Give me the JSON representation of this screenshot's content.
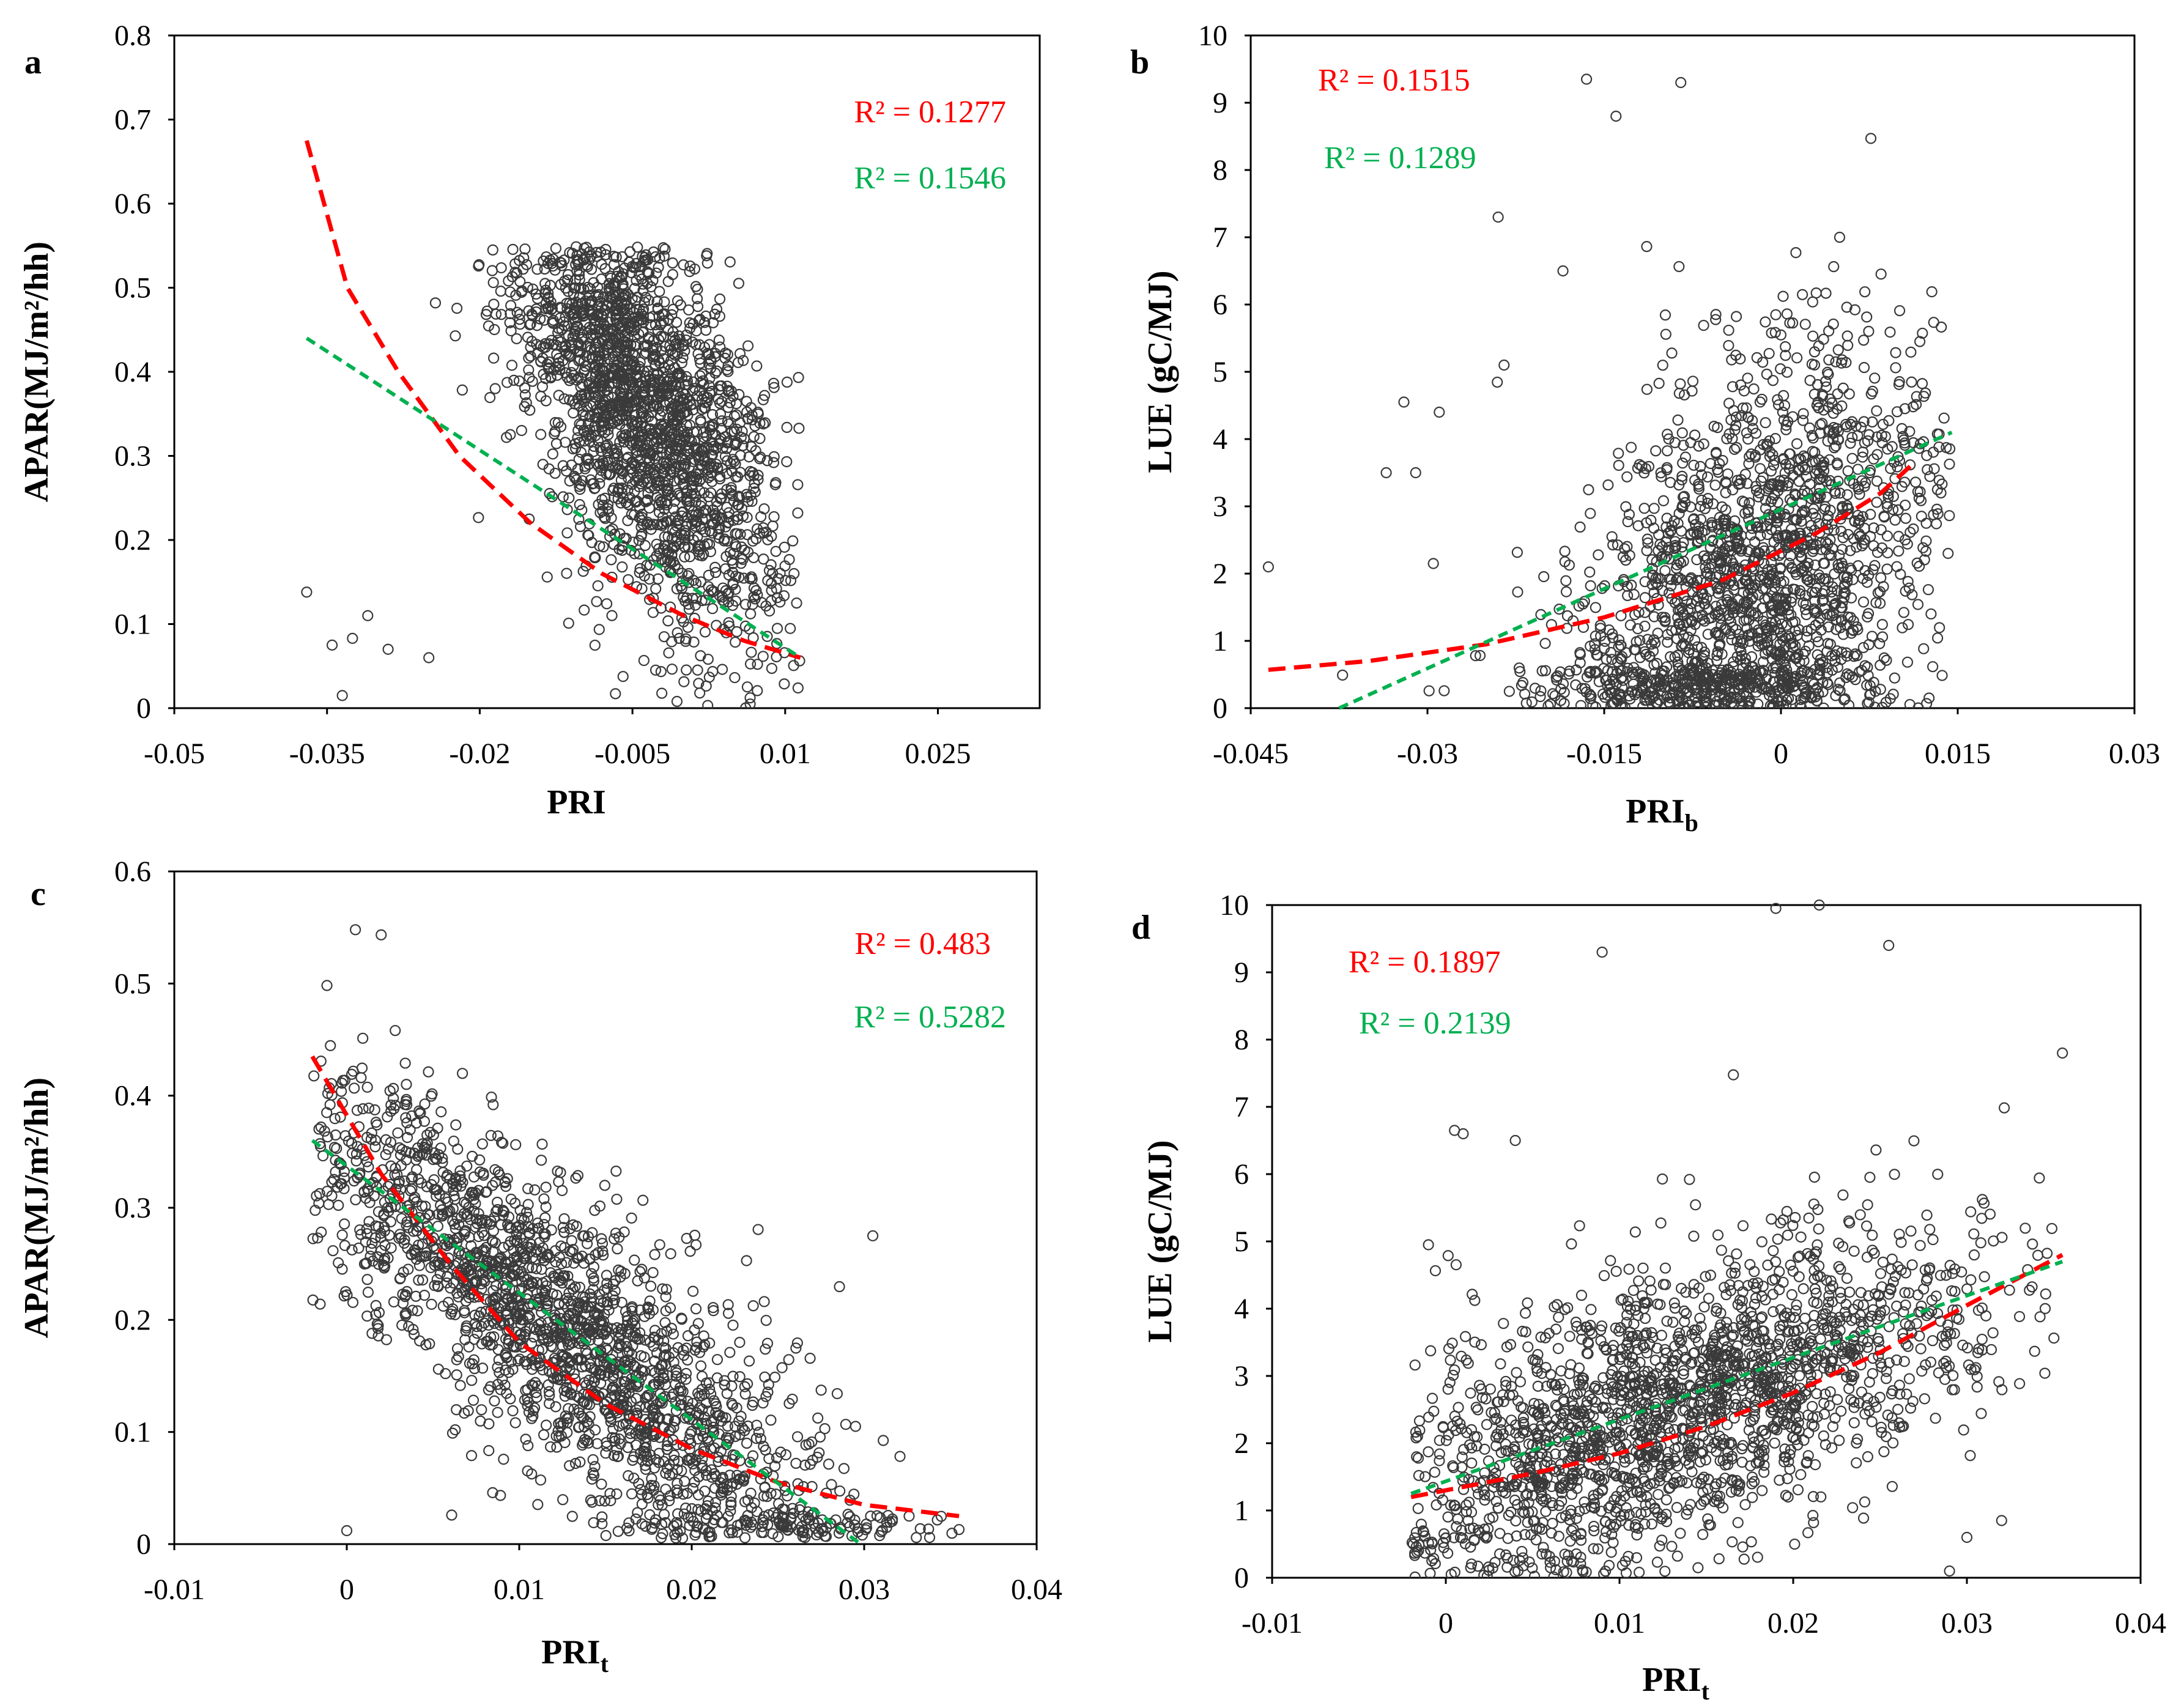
{
  "chart_data": [
    {
      "panel": "a",
      "type": "scatter",
      "xlabel": "PRI",
      "ylabel": "APAR(MJ/m²/hh)",
      "xlim": [
        -0.05,
        0.035
      ],
      "ylim": [
        0,
        0.8
      ],
      "xticks": [
        -0.05,
        -0.035,
        -0.02,
        -0.005,
        0.01,
        0.025
      ],
      "xtick_labels": [
        "-0.05",
        "-0.035",
        "-0.02",
        "-0.005",
        "0.01",
        "0.025"
      ],
      "yticks": [
        0,
        0.1,
        0.2,
        0.3,
        0.4,
        0.5,
        0.6,
        0.7,
        0.8
      ],
      "ytick_labels": [
        "0",
        "0.1",
        "0.2",
        "0.3",
        "0.4",
        "0.5",
        "0.6",
        "0.7",
        "0.8"
      ],
      "point_cloud": {
        "x_center": -0.004,
        "x_spread": 0.0065,
        "y_model": "0.36 - 12*(x+0.004)",
        "y_spread": 0.13,
        "y_min": 0,
        "y_max": 0.55,
        "x_min": -0.037,
        "x_max": 0.0115
      },
      "outliers": [
        [
          -0.037,
          0.138
        ],
        [
          -0.0345,
          0.075
        ],
        [
          -0.0325,
          0.083
        ],
        [
          -0.031,
          0.11
        ],
        [
          -0.0335,
          0.015
        ],
        [
          -0.025,
          0.06
        ],
        [
          -0.029,
          0.07
        ]
      ],
      "fits": [
        {
          "label": "R² = 0.1277",
          "color": "#ff0000",
          "kind": "exponential",
          "points": [
            [
              -0.037,
              0.675
            ],
            [
              -0.033,
              0.5
            ],
            [
              -0.028,
              0.4
            ],
            [
              -0.022,
              0.3
            ],
            [
              -0.015,
              0.22
            ],
            [
              -0.008,
              0.16
            ],
            [
              0.0,
              0.11
            ],
            [
              0.006,
              0.08
            ],
            [
              0.0115,
              0.06
            ]
          ]
        },
        {
          "label": "R² = 0.1546",
          "color": "#00b050",
          "kind": "linear",
          "points": [
            [
              -0.037,
              0.44
            ],
            [
              0.0115,
              0.06
            ]
          ]
        }
      ]
    },
    {
      "panel": "b",
      "type": "scatter",
      "xlabel": "PRI",
      "xlabel_sub": "b",
      "ylabel": "LUE (gC/MJ)",
      "xlim": [
        -0.045,
        0.03
      ],
      "ylim": [
        0,
        10
      ],
      "xticks": [
        -0.045,
        -0.03,
        -0.015,
        0,
        0.015,
        0.03
      ],
      "xtick_labels": [
        "-0.045",
        "-0.03",
        "-0.015",
        "0",
        "0.015",
        "0.03"
      ],
      "yticks": [
        0,
        1,
        2,
        3,
        4,
        5,
        6,
        7,
        8,
        9,
        10
      ],
      "ytick_labels": [
        "0",
        "1",
        "2",
        "3",
        "4",
        "5",
        "6",
        "7",
        "8",
        "9",
        "10"
      ],
      "point_cloud": {
        "x_center": -0.002,
        "x_spread": 0.008,
        "y_model": "1.8 + 90*(x+0.002)",
        "y_spread": 1.9,
        "y_min": 0,
        "y_max": 10,
        "x_min": -0.04,
        "x_max": 0.0145
      },
      "outliers": [
        [
          -0.0435,
          2.1
        ],
        [
          -0.0335,
          3.5
        ],
        [
          -0.031,
          3.5
        ],
        [
          -0.032,
          4.55
        ],
        [
          -0.029,
          4.4
        ],
        [
          -0.0295,
          2.15
        ],
        [
          -0.024,
          7.3
        ],
        [
          -0.0235,
          5.1
        ],
        [
          -0.0185,
          6.5
        ],
        [
          -0.0165,
          9.35
        ],
        [
          -0.014,
          8.8
        ],
        [
          -0.0085,
          9.3
        ]
      ],
      "fits": [
        {
          "label": "R² = 0.1515",
          "color": "#ff0000",
          "kind": "exponential",
          "points": [
            [
              -0.0435,
              0.57
            ],
            [
              -0.035,
              0.7
            ],
            [
              -0.025,
              0.95
            ],
            [
              -0.015,
              1.35
            ],
            [
              -0.005,
              1.9
            ],
            [
              0.003,
              2.6
            ],
            [
              0.0085,
              3.2
            ],
            [
              0.011,
              3.6
            ]
          ]
        },
        {
          "label": "R² = 0.1289",
          "color": "#00b050",
          "kind": "linear",
          "points": [
            [
              -0.0375,
              0.0
            ],
            [
              0.0145,
              4.1
            ]
          ]
        }
      ]
    },
    {
      "panel": "c",
      "type": "scatter",
      "xlabel": "PRI",
      "xlabel_sub": "t",
      "ylabel": "APAR(MJ/m²/hh)",
      "xlim": [
        -0.01,
        0.04
      ],
      "ylim": [
        0,
        0.6
      ],
      "xticks": [
        -0.01,
        0,
        0.01,
        0.02,
        0.03,
        0.04
      ],
      "xtick_labels": [
        "-0.01",
        "0",
        "0.01",
        "0.02",
        "0.03",
        "0.04"
      ],
      "yticks": [
        0,
        0.1,
        0.2,
        0.3,
        0.4,
        0.5,
        0.6
      ],
      "ytick_labels": [
        "0",
        "0.1",
        "0.2",
        "0.3",
        "0.4",
        "0.5",
        "0.6"
      ],
      "point_cloud": {
        "x_center": 0.012,
        "x_spread": 0.0085,
        "y_model": "0.34 - 12*(x-0.0)",
        "y_spread": 0.075,
        "y_min": 0.005,
        "y_max": 0.55,
        "x_min": -0.002,
        "x_max": 0.0355
      },
      "outliers": [
        [
          0.0305,
          0.275
        ],
        [
          0.0355,
          0.013
        ],
        [
          0.0295,
          0.105
        ],
        [
          0.0,
          0.012
        ],
        [
          0.0005,
          0.548
        ]
      ],
      "fits": [
        {
          "label": "R² = 0.483",
          "color": "#ff0000",
          "kind": "exponential",
          "points": [
            [
              -0.002,
              0.435
            ],
            [
              0.002,
              0.33
            ],
            [
              0.006,
              0.25
            ],
            [
              0.01,
              0.18
            ],
            [
              0.015,
              0.125
            ],
            [
              0.02,
              0.085
            ],
            [
              0.025,
              0.055
            ],
            [
              0.03,
              0.035
            ],
            [
              0.0355,
              0.025
            ]
          ]
        },
        {
          "label": "R² = 0.5282",
          "color": "#00b050",
          "kind": "linear",
          "points": [
            [
              -0.002,
              0.36
            ],
            [
              0.0298,
              0.0
            ]
          ]
        }
      ]
    },
    {
      "panel": "d",
      "type": "scatter",
      "xlabel": "PRI",
      "xlabel_sub": "t",
      "ylabel": "LUE (gC/MJ)",
      "xlim": [
        -0.01,
        0.04
      ],
      "ylim": [
        0,
        10
      ],
      "xticks": [
        -0.01,
        0,
        0.01,
        0.02,
        0.03,
        0.04
      ],
      "xtick_labels": [
        "-0.01",
        "0",
        "0.01",
        "0.02",
        "0.03",
        "0.04"
      ],
      "yticks": [
        0,
        1,
        2,
        3,
        4,
        5,
        6,
        7,
        8,
        9,
        10
      ],
      "ytick_labels": [
        "0",
        "1",
        "2",
        "3",
        "4",
        "5",
        "6",
        "7",
        "8",
        "9",
        "10"
      ],
      "point_cloud": {
        "x_center": 0.013,
        "x_spread": 0.0095,
        "y_model": "1.4 + 85*(x-0.0)",
        "y_spread": 1.25,
        "y_min": 0,
        "y_max": 10,
        "x_min": -0.002,
        "x_max": 0.0355
      },
      "outliers": [
        [
          0.0355,
          7.8
        ],
        [
          -0.001,
          4.95
        ],
        [
          0.0005,
          6.65
        ],
        [
          0.001,
          6.6
        ],
        [
          0.004,
          6.5
        ],
        [
          0.009,
          9.3
        ],
        [
          0.019,
          9.95
        ],
        [
          0.0215,
          10.0
        ],
        [
          0.0255,
          9.4
        ],
        [
          0.03,
          0.6
        ],
        [
          0.032,
          0.85
        ],
        [
          0.029,
          0.1
        ]
      ],
      "fits": [
        {
          "label": "R² = 0.1897",
          "color": "#ff0000",
          "kind": "exponential",
          "points": [
            [
              -0.002,
              1.2
            ],
            [
              0.005,
              1.55
            ],
            [
              0.01,
              1.85
            ],
            [
              0.015,
              2.25
            ],
            [
              0.02,
              2.75
            ],
            [
              0.025,
              3.35
            ],
            [
              0.03,
              4.05
            ],
            [
              0.0355,
              4.8
            ]
          ]
        },
        {
          "label": "R² = 0.2139",
          "color": "#00b050",
          "kind": "linear",
          "points": [
            [
              -0.002,
              1.25
            ],
            [
              0.0355,
              4.7
            ]
          ]
        }
      ]
    }
  ]
}
